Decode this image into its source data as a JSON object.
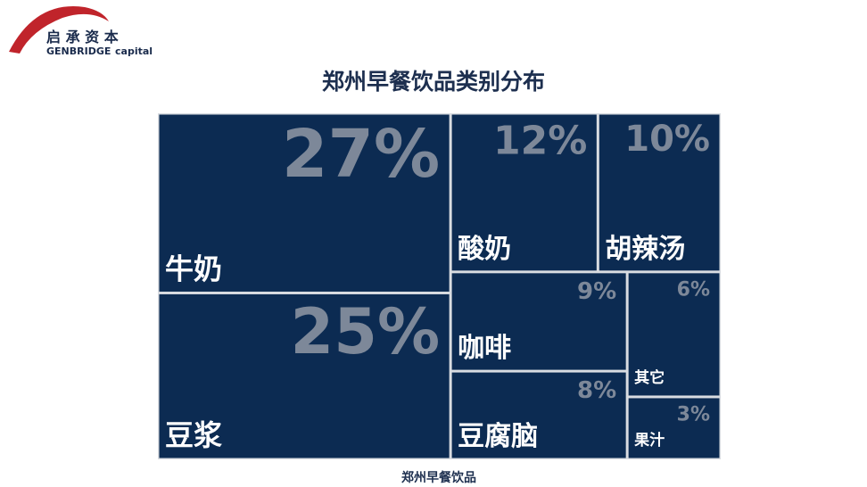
{
  "logo": {
    "chinese": "启 承 资 本",
    "english": "GENBRIDGE",
    "english_2": "capital"
  },
  "chart_data": {
    "type": "treemap",
    "title": "郑州早餐饮品类别分布",
    "caption": "郑州早餐饮品",
    "categories": [
      "牛奶",
      "豆浆",
      "酸奶",
      "胡辣汤",
      "咖啡",
      "豆腐脑",
      "其它",
      "果汁"
    ],
    "values": [
      27,
      25,
      12,
      10,
      9,
      8,
      6,
      3
    ],
    "value_labels": [
      "27%",
      "25%",
      "12%",
      "10%",
      "9%",
      "8%",
      "6%",
      "3%"
    ],
    "color": "#0c2b52",
    "label_color": "#7d8899"
  }
}
